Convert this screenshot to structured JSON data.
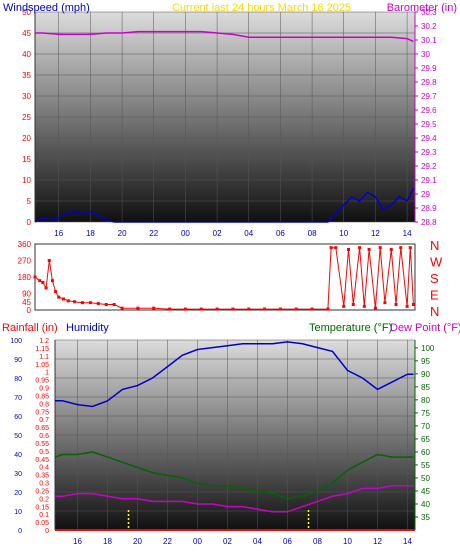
{
  "chart_data": [
    {
      "type": "line",
      "title": "Current last 24 hours March 16 2025",
      "left_axis_label": "Windspeed (mph)",
      "right_axis_label": "Barometer (in)",
      "x_ticks": [
        "16",
        "18",
        "20",
        "22",
        "00",
        "02",
        "04",
        "06",
        "08",
        "10",
        "12",
        "14"
      ],
      "left_axis": {
        "min": 0,
        "max": 50,
        "ticks": [
          0,
          5,
          10,
          15,
          20,
          25,
          30,
          35,
          40,
          45,
          50
        ]
      },
      "right_axis": {
        "min": 28.8,
        "max": 30.3,
        "ticks": [
          "28.8",
          "28.9",
          "29",
          "29.1",
          "29.2",
          "29.3",
          "29.4",
          "29.5",
          "29.6",
          "29.7",
          "29.8",
          "29.9",
          "30",
          "30.1",
          "30.2",
          "30.3"
        ]
      },
      "grid": true,
      "series": [
        {
          "name": "Windspeed (mph)",
          "axis": "left",
          "color": "#0000cc",
          "x": [
            14.5,
            15,
            15.5,
            16,
            16.5,
            17,
            17.5,
            18,
            18.5,
            19,
            19.5,
            20,
            21,
            22,
            23,
            0,
            1,
            2,
            3,
            4,
            5,
            6,
            7,
            8,
            9,
            9.5,
            10,
            10.5,
            11,
            11.5,
            12,
            12.5,
            13,
            13.5,
            14,
            14.4
          ],
          "y": [
            0,
            1,
            0.5,
            1,
            2,
            2.5,
            2,
            2.5,
            1.5,
            0.5,
            0,
            0,
            0,
            0,
            0,
            0,
            0,
            0,
            0,
            0,
            0,
            0,
            0,
            0,
            0,
            2,
            4,
            6,
            5,
            7,
            6,
            3,
            4,
            6,
            5,
            8
          ]
        },
        {
          "name": "Barometer (in)",
          "axis": "right",
          "color": "#cc00cc",
          "x": [
            14.5,
            15,
            16,
            17,
            18,
            19,
            20,
            21,
            22,
            23,
            0,
            1,
            2,
            3,
            4,
            5,
            6,
            7,
            8,
            9,
            10,
            11,
            12,
            13,
            14,
            14.4
          ],
          "y": [
            30.15,
            30.15,
            30.14,
            30.14,
            30.14,
            30.15,
            30.15,
            30.16,
            30.16,
            30.16,
            30.16,
            30.16,
            30.15,
            30.14,
            30.12,
            30.12,
            30.12,
            30.12,
            30.12,
            30.12,
            30.12,
            30.12,
            30.12,
            30.12,
            30.11,
            30.09
          ]
        }
      ]
    },
    {
      "type": "scatter",
      "title": "",
      "left_axis": {
        "min": 0,
        "max": 360,
        "ticks": [
          0,
          45,
          90,
          180,
          270,
          360
        ]
      },
      "right_axis_labels": [
        "N",
        "W",
        "S",
        "E",
        "N"
      ],
      "x_ticks": [],
      "grid": false,
      "series": [
        {
          "name": "Wind direction",
          "color": "#ff0000",
          "x": [
            14.5,
            14.8,
            15,
            15.2,
            15.4,
            15.6,
            15.8,
            16,
            16.3,
            16.6,
            17,
            17.5,
            18,
            18.5,
            19,
            19.5,
            20,
            21,
            22,
            23,
            0,
            1,
            2,
            3,
            4,
            5,
            6,
            7,
            8,
            9,
            9.2,
            9.5,
            10,
            10.3,
            10.6,
            11,
            11.3,
            11.6,
            12,
            12.3,
            12.6,
            13,
            13.3,
            13.6,
            14,
            14.2,
            14.4
          ],
          "y": [
            180,
            160,
            150,
            120,
            270,
            160,
            100,
            70,
            60,
            50,
            45,
            40,
            40,
            35,
            30,
            30,
            10,
            10,
            10,
            5,
            5,
            5,
            5,
            5,
            5,
            5,
            5,
            5,
            5,
            5,
            340,
            340,
            20,
            330,
            30,
            340,
            20,
            330,
            10,
            340,
            40,
            330,
            30,
            340,
            20,
            340,
            30
          ]
        }
      ]
    },
    {
      "type": "line",
      "title": "",
      "left_axis_labels": [
        "Rainfall (in)",
        "Humidity"
      ],
      "right_axis_labels": [
        "Temperature (°F)",
        "Dew Point (°F)"
      ],
      "x_ticks": [
        "16",
        "18",
        "20",
        "22",
        "00",
        "02",
        "04",
        "06",
        "08",
        "10",
        "12",
        "14"
      ],
      "rainfall_axis": {
        "min": 0,
        "max": 1.2,
        "ticks": [
          "0",
          "0.05",
          "0.1",
          "0.15",
          "0.2",
          "0.25",
          "0.3",
          "0.35",
          "0.4",
          "0.45",
          "0.5",
          "0.55",
          "0.6",
          "0.65",
          "0.7",
          "0.75",
          "0.8",
          "0.85",
          "0.9",
          "0.95",
          "1",
          "1.05",
          "1.1",
          "1.15",
          "1.2"
        ]
      },
      "humidity_axis": {
        "min": 0,
        "max": 100,
        "ticks": [
          0,
          10,
          20,
          30,
          40,
          50,
          60,
          70,
          80,
          90,
          100
        ]
      },
      "temperature_axis": {
        "min": 30,
        "max": 103,
        "ticks": [
          35,
          40,
          45,
          50,
          55,
          60,
          65,
          70,
          75,
          80,
          85,
          90,
          95,
          100
        ]
      },
      "grid": true,
      "series": [
        {
          "name": "Humidity",
          "axis": "humidity",
          "color": "#0000cc",
          "x": [
            14.5,
            15,
            16,
            17,
            18,
            19,
            20,
            21,
            22,
            23,
            0,
            1,
            2,
            3,
            4,
            5,
            6,
            7,
            8,
            9,
            10,
            11,
            12,
            13,
            14,
            14.4
          ],
          "y": [
            68,
            68,
            66,
            65,
            68,
            74,
            76,
            80,
            86,
            92,
            95,
            96,
            97,
            98,
            98,
            98,
            99,
            98,
            96,
            94,
            84,
            80,
            74,
            78,
            82,
            82
          ]
        },
        {
          "name": "Temperature (°F)",
          "axis": "temperature",
          "color": "#006600",
          "x": [
            14.5,
            15,
            16,
            17,
            18,
            19,
            20,
            21,
            22,
            23,
            0,
            1,
            2,
            3,
            4,
            5,
            6,
            7,
            8,
            9,
            10,
            11,
            12,
            13,
            14,
            14.4
          ],
          "y": [
            58,
            59,
            59,
            60,
            58,
            56,
            54,
            52,
            51,
            50,
            48,
            47,
            47,
            46,
            45,
            44,
            42,
            43,
            45,
            48,
            53,
            56,
            59,
            58,
            58,
            58
          ]
        },
        {
          "name": "Dew Point (°F)",
          "axis": "temperature",
          "color": "#cc00cc",
          "x": [
            14.5,
            15,
            16,
            17,
            18,
            19,
            20,
            21,
            22,
            23,
            0,
            1,
            2,
            3,
            4,
            5,
            6,
            7,
            8,
            9,
            10,
            11,
            12,
            13,
            14,
            14.4
          ],
          "y": [
            43,
            43,
            44,
            44,
            43,
            42,
            42,
            41,
            41,
            41,
            40,
            40,
            39,
            39,
            38,
            37,
            37,
            39,
            41,
            43,
            44,
            46,
            46,
            47,
            47,
            47
          ]
        },
        {
          "name": "Rainfall (in)",
          "axis": "rainfall",
          "color": "#ff0000",
          "x": [
            14.5,
            14.4
          ],
          "y": [
            0,
            0
          ]
        }
      ],
      "markers": [
        {
          "color": "#ffff00",
          "x": 19.4
        },
        {
          "color": "#ffff00",
          "x": 7.4
        }
      ]
    }
  ]
}
